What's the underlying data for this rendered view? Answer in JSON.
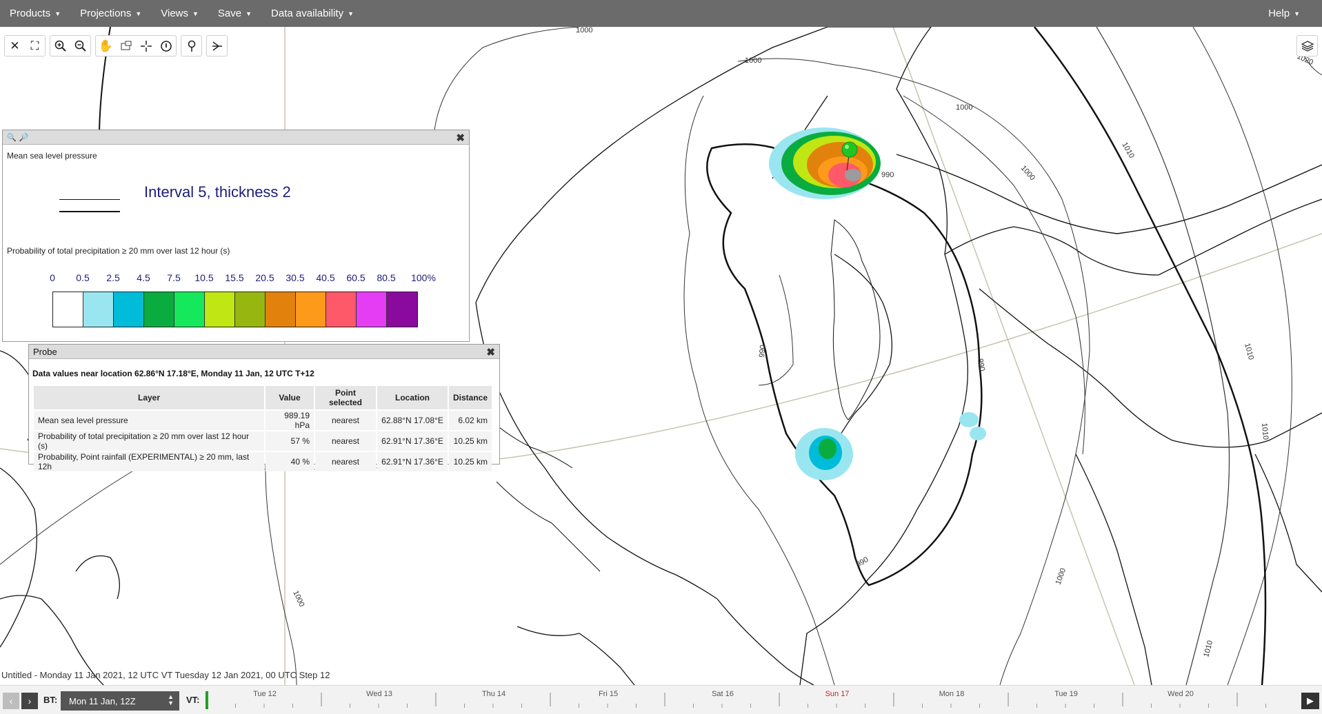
{
  "menu": {
    "products": "Products",
    "projections": "Projections",
    "views": "Views",
    "save": "Save",
    "data_availability": "Data availability",
    "help": "Help"
  },
  "toolbar": {
    "icons": [
      "close-icon",
      "fullscreen-icon",
      "zoom-in-icon",
      "zoom-out-icon",
      "pan-hand-icon",
      "zoom-box-icon",
      "crosshair-icon",
      "info-icon",
      "location-pin-icon",
      "cross-section-icon",
      "layers-icon"
    ]
  },
  "map": {
    "contour_labels": [
      "1000",
      "1000",
      "1000",
      "1000",
      "1010",
      "1010",
      "1010",
      "1010",
      "1020",
      "990",
      "990",
      "990",
      "990",
      "1000",
      "1000"
    ]
  },
  "legend": {
    "msl_title": "Mean sea level pressure",
    "msl_interval": "Interval 5, thickness 2",
    "precip_title": "Probability of total precipitation ≥ 20 mm over last 12 hour (s)",
    "colorbar_labels": [
      "0",
      "0.5",
      "2.5",
      "4.5",
      "7.5",
      "10.5",
      "15.5",
      "20.5",
      "30.5",
      "40.5",
      "60.5",
      "80.5",
      "100%"
    ],
    "colorbar_colors": [
      "#ffffff",
      "#9ae6f0",
      "#00bcd8",
      "#0aac40",
      "#16e85c",
      "#c0e614",
      "#98b610",
      "#e2810b",
      "#fe9a1a",
      "#fd5968",
      "#e43df4",
      "#8a0a9e"
    ]
  },
  "probe": {
    "title": "Probe",
    "caption": "Data values near location 62.86°N 17.18°E, Monday 11 Jan, 12 UTC T+12",
    "headers": [
      "Layer",
      "Value",
      "Point selected",
      "Location",
      "Distance"
    ],
    "rows": [
      {
        "layer": "Mean sea level pressure",
        "value": "989.19 hPa",
        "point": "nearest",
        "location": "62.88°N 17.08°E",
        "distance": "6.02 km"
      },
      {
        "layer": "Probability of total precipitation ≥ 20 mm over last 12 hour (s)",
        "value": "57 %",
        "point": "nearest",
        "location": "62.91°N 17.36°E",
        "distance": "10.25 km"
      },
      {
        "layer": "Probability, Point rainfall (EXPERIMENTAL) ≥ 20 mm, last 12h",
        "value": "40 %",
        "point": "nearest",
        "location": "62.91°N 17.36°E",
        "distance": "10.25 km"
      }
    ]
  },
  "status_line": "Untitled - Monday 11 Jan 2021, 12 UTC VT Tuesday 12 Jan 2021, 00 UTC Step 12",
  "timeline": {
    "bt_label": "BT:",
    "bt_value": "Mon 11 Jan, 12Z",
    "vt_label": "VT:",
    "days": [
      {
        "label": "Tue 12",
        "sunday": false
      },
      {
        "label": "Wed 13",
        "sunday": false
      },
      {
        "label": "Thu 14",
        "sunday": false
      },
      {
        "label": "Fri 15",
        "sunday": false
      },
      {
        "label": "Sat 16",
        "sunday": false
      },
      {
        "label": "Sun 17",
        "sunday": true
      },
      {
        "label": "Mon 18",
        "sunday": false
      },
      {
        "label": "Tue 19",
        "sunday": false
      },
      {
        "label": "Wed 20",
        "sunday": false
      }
    ],
    "sunday_color": "#d81b1b",
    "marker_color": "#16a016"
  }
}
